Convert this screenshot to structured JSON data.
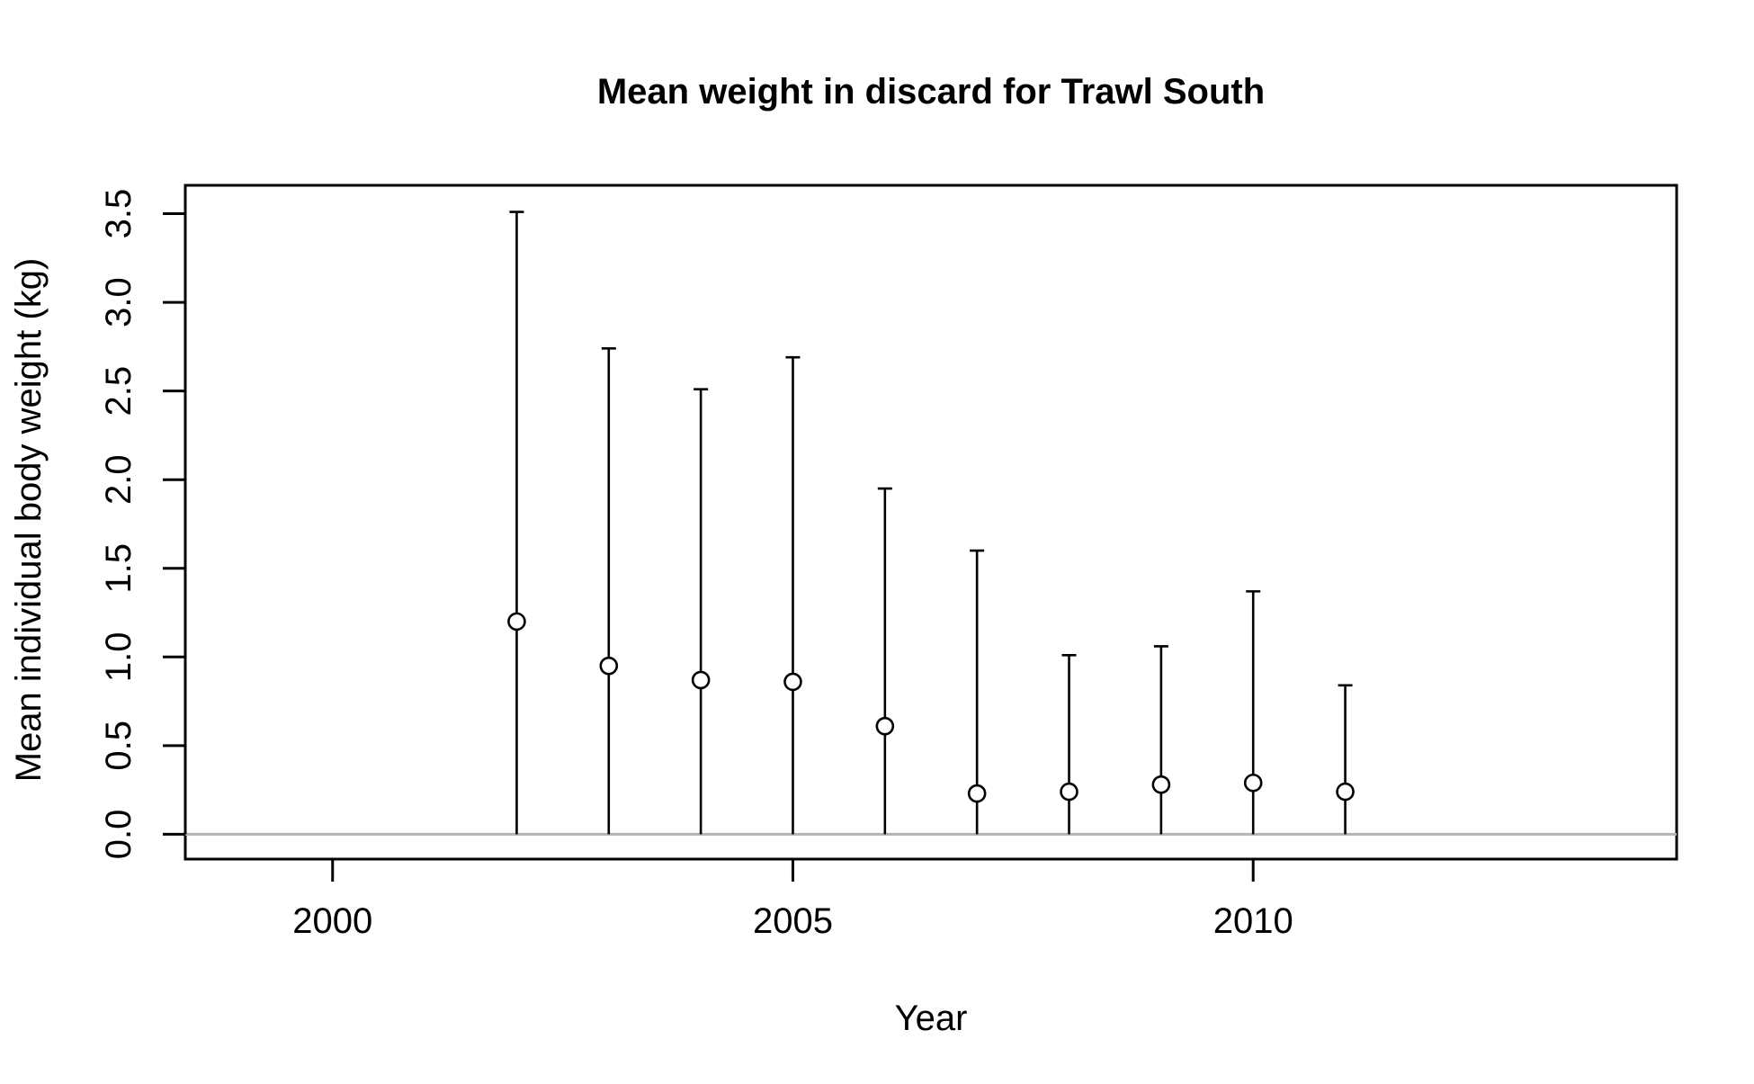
{
  "chart_data": {
    "type": "scatter",
    "title": "Mean weight in discard for Trawl South",
    "xlabel": "Year",
    "ylabel": "Mean individual body weight (kg)",
    "xlim": [
      1998.4,
      2014.6
    ],
    "ylim": [
      -0.14,
      3.66
    ],
    "x_ticks": [
      2000,
      2005,
      2010
    ],
    "x_tick_labels": [
      "2000",
      "2005",
      "2010"
    ],
    "y_ticks": [
      0.0,
      0.5,
      1.0,
      1.5,
      2.0,
      2.5,
      3.0,
      3.5
    ],
    "y_tick_labels": [
      "0.0",
      "0.5",
      "1.0",
      "1.5",
      "2.0",
      "2.5",
      "3.0",
      "3.5"
    ],
    "grid": false,
    "reference_line": {
      "y": 0,
      "color": "#b3b3b3"
    },
    "series": [
      {
        "marker": "open-circle",
        "color": "#000000",
        "points": [
          {
            "x": 2002,
            "y": 1.2,
            "lower": 0.0,
            "upper": 3.51
          },
          {
            "x": 2003,
            "y": 0.95,
            "lower": 0.0,
            "upper": 2.74
          },
          {
            "x": 2004,
            "y": 0.87,
            "lower": 0.0,
            "upper": 2.51
          },
          {
            "x": 2005,
            "y": 0.86,
            "lower": 0.0,
            "upper": 2.69
          },
          {
            "x": 2006,
            "y": 0.61,
            "lower": 0.0,
            "upper": 1.95
          },
          {
            "x": 2007,
            "y": 0.23,
            "lower": 0.0,
            "upper": 1.6
          },
          {
            "x": 2008,
            "y": 0.24,
            "lower": 0.0,
            "upper": 1.01
          },
          {
            "x": 2009,
            "y": 0.28,
            "lower": 0.0,
            "upper": 1.06
          },
          {
            "x": 2010,
            "y": 0.29,
            "lower": 0.0,
            "upper": 1.37
          },
          {
            "x": 2011,
            "y": 0.24,
            "lower": 0.0,
            "upper": 0.84
          }
        ]
      }
    ]
  }
}
